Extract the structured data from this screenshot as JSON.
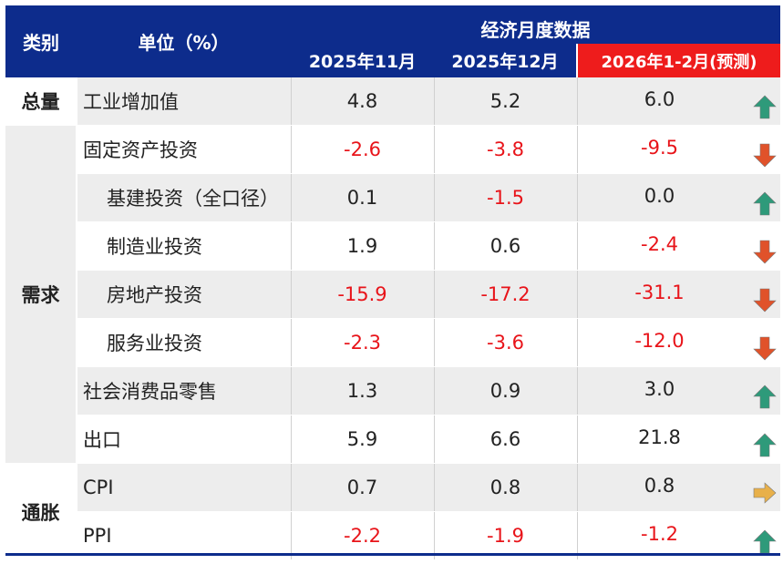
{
  "header": {
    "category_label": "类别",
    "unit_label": "单位（%）",
    "group_label": "经济月度数据",
    "columns": [
      "2025年11月",
      "2025年12月",
      "2026年1-2月(预测)"
    ]
  },
  "categories": {
    "total": "总量",
    "demand": "需求",
    "inflation": "通胀"
  },
  "rows": [
    {
      "name": "工业增加值",
      "v1": "4.8",
      "v2": "5.2",
      "v3": "6.0",
      "trend": "up"
    },
    {
      "name": "固定资产投资",
      "v1": "-2.6",
      "v2": "-3.8",
      "v3": "-9.5",
      "trend": "down"
    },
    {
      "name": "基建投资（全口径）",
      "v1": "0.1",
      "v2": "-1.5",
      "v3": "0.0",
      "trend": "up"
    },
    {
      "name": "制造业投资",
      "v1": "1.9",
      "v2": "0.6",
      "v3": "-2.4",
      "trend": "down"
    },
    {
      "name": "房地产投资",
      "v1": "-15.9",
      "v2": "-17.2",
      "v3": "-31.1",
      "trend": "down"
    },
    {
      "name": "服务业投资",
      "v1": "-2.3",
      "v2": "-3.6",
      "v3": "-12.0",
      "trend": "down"
    },
    {
      "name": "社会消费品零售",
      "v1": "1.3",
      "v2": "0.9",
      "v3": "3.0",
      "trend": "up"
    },
    {
      "name": "出口",
      "v1": "5.9",
      "v2": "6.6",
      "v3": "21.8",
      "trend": "up"
    },
    {
      "name": "CPI",
      "v1": "0.7",
      "v2": "0.8",
      "v3": "0.8",
      "trend": "flat"
    },
    {
      "name": "PPI",
      "v1": "-2.2",
      "v2": "-1.9",
      "v3": "-1.2",
      "trend": "up"
    }
  ],
  "colors": {
    "header_bg": "#0d2c8c",
    "forecast_bg": "#ee1c1c",
    "negative_text": "#e8141a",
    "arrow_up": "#2e9a7a",
    "arrow_down": "#e0522a",
    "arrow_flat": "#e8b04a"
  }
}
